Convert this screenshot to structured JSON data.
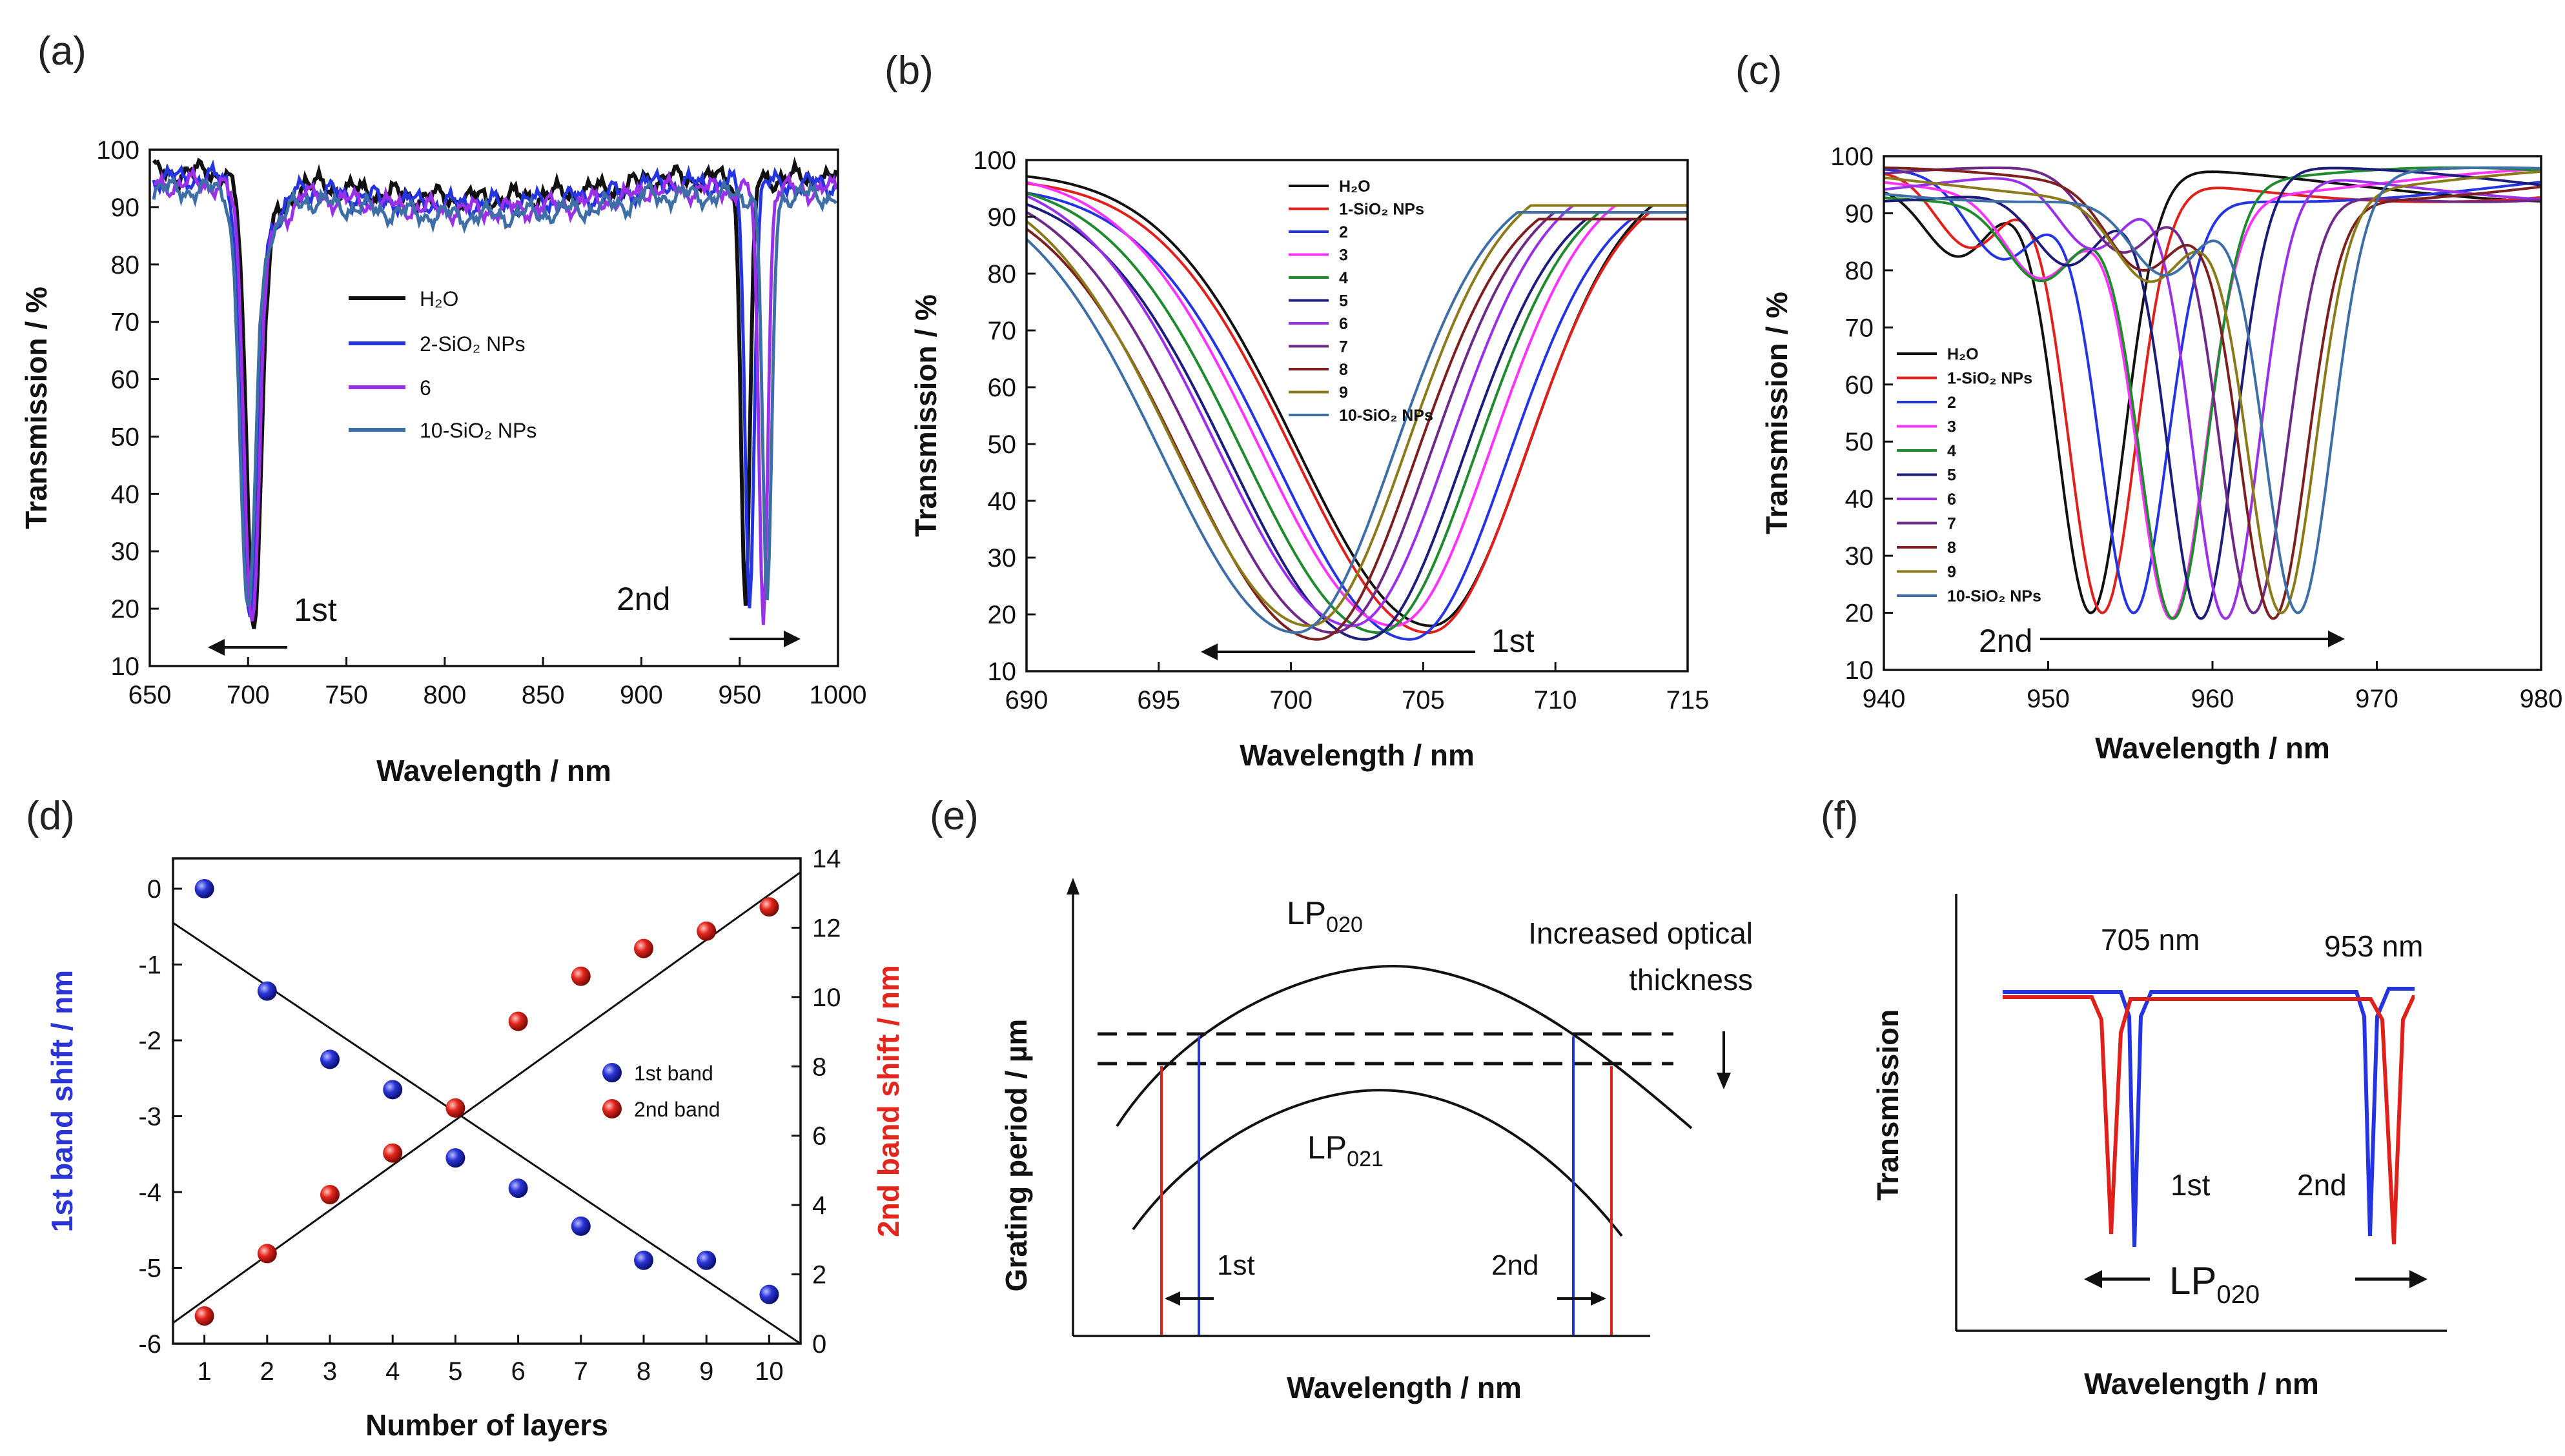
{
  "panel_labels": [
    "(a)",
    "(b)",
    "(c)",
    "(d)",
    "(e)",
    "(f)"
  ],
  "colors": {
    "black": "#111111",
    "red": "#e0201a",
    "blue": "#2434e0",
    "magenta": "#ff33ff",
    "green": "#1f8a2e",
    "navy": "#1c1c7a",
    "violet": "#9a30e8",
    "purple": "#6e2a86",
    "maroon": "#7b1f1f",
    "olive": "#8b7a1a",
    "steel": "#3d6fa6",
    "dot_blue": "#2b35d6",
    "dot_red": "#e3261d"
  },
  "chart_data": [
    {
      "id": "a",
      "type": "line",
      "title": "",
      "xlabel": "Wavelength / nm",
      "ylabel": "Transmission / %",
      "xlim": [
        650,
        1000
      ],
      "ylim": [
        10,
        100
      ],
      "xticks": [
        650,
        700,
        750,
        800,
        850,
        900,
        950,
        1000
      ],
      "yticks": [
        10,
        20,
        30,
        40,
        50,
        60,
        70,
        80,
        90,
        100
      ],
      "series": [
        {
          "name": "H₂O",
          "color": "#111111",
          "width": 6,
          "dip1": 703,
          "dip2": 953,
          "min1": 18,
          "min2": 21,
          "base": 97
        },
        {
          "name": "2-SiO₂ NPs",
          "color": "#2434e0",
          "width": 5,
          "dip1": 701,
          "dip2": 955,
          "min1": 18,
          "min2": 21,
          "base": 96
        },
        {
          "name": "6",
          "color": "#9a30e8",
          "width": 5,
          "dip1": 702,
          "dip2": 962,
          "min1": 18,
          "min2": 19,
          "base": 95
        },
        {
          "name": "10-SiO₂ NPs",
          "color": "#3d6fa6",
          "width": 5,
          "dip1": 700,
          "dip2": 964,
          "min1": 18,
          "min2": 20,
          "base": 94
        }
      ],
      "annotations": [
        {
          "text": "1st",
          "x": 723,
          "y": 20
        },
        {
          "text": "2nd",
          "x": 917,
          "y": 22
        }
      ]
    },
    {
      "id": "b",
      "type": "line",
      "title": "",
      "xlabel": "Wavelength / nm",
      "ylabel": "Transmission / %",
      "xlim": [
        690,
        715
      ],
      "ylim": [
        10,
        100
      ],
      "xticks": [
        690,
        695,
        700,
        705,
        710,
        715
      ],
      "yticks": [
        10,
        20,
        30,
        40,
        50,
        60,
        70,
        80,
        90,
        100
      ],
      "series": [
        {
          "name": "H₂O",
          "color": "#111111",
          "center": 705.3,
          "min": 18
        },
        {
          "name": "1-SiO₂ NPs",
          "color": "#e0201a",
          "center": 705.2,
          "min": 18
        },
        {
          "name": "2",
          "color": "#2434e0",
          "center": 704.5,
          "min": 18
        },
        {
          "name": "3",
          "color": "#ff33ff",
          "center": 703.9,
          "min": 18
        },
        {
          "name": "4",
          "color": "#1f8a2e",
          "center": 703.3,
          "min": 18
        },
        {
          "name": "5",
          "color": "#1c1c7a",
          "center": 702.8,
          "min": 18
        },
        {
          "name": "6",
          "color": "#9a30e8",
          "center": 702.3,
          "min": 18
        },
        {
          "name": "7",
          "color": "#6e2a86",
          "center": 701.6,
          "min": 18
        },
        {
          "name": "8",
          "color": "#7b1f1f",
          "center": 701.0,
          "min": 18
        },
        {
          "name": "9",
          "color": "#8b7a1a",
          "center": 700.7,
          "min": 18
        },
        {
          "name": "10-SiO₂ NPs",
          "color": "#3d6fa6",
          "center": 700.2,
          "min": 18
        }
      ],
      "annotations": [
        {
          "text": "1st",
          "x": 710.5,
          "y": 14
        }
      ]
    },
    {
      "id": "c",
      "type": "line",
      "title": "",
      "xlabel": "Wavelength / nm",
      "ylabel": "Transmission / %",
      "xlim": [
        940,
        980
      ],
      "ylim": [
        10,
        100
      ],
      "xticks": [
        940,
        950,
        960,
        970,
        980
      ],
      "yticks": [
        10,
        20,
        30,
        40,
        50,
        60,
        70,
        80,
        90,
        100
      ],
      "series": [
        {
          "name": "H₂O",
          "color": "#111111",
          "center": 952.6,
          "min": 20
        },
        {
          "name": "1-SiO₂ NPs",
          "color": "#e0201a",
          "center": 953.3,
          "min": 20
        },
        {
          "name": "2",
          "color": "#2434e0",
          "center": 955.2,
          "min": 20
        },
        {
          "name": "3",
          "color": "#ff33ff",
          "center": 957.5,
          "min": 19
        },
        {
          "name": "4",
          "color": "#1f8a2e",
          "center": 957.6,
          "min": 19
        },
        {
          "name": "5",
          "color": "#1c1c7a",
          "center": 959.3,
          "min": 19
        },
        {
          "name": "6",
          "color": "#9a30e8",
          "center": 960.8,
          "min": 19
        },
        {
          "name": "7",
          "color": "#6e2a86",
          "center": 962.5,
          "min": 20
        },
        {
          "name": "8",
          "color": "#7b1f1f",
          "center": 963.7,
          "min": 19
        },
        {
          "name": "9",
          "color": "#8b7a1a",
          "center": 964.2,
          "min": 20
        },
        {
          "name": "10-SiO₂ NPs",
          "color": "#3d6fa6",
          "center": 965.2,
          "min": 20
        }
      ],
      "annotations": [
        {
          "text": "2nd",
          "x": 948.8,
          "y": 15
        }
      ]
    },
    {
      "id": "d",
      "type": "scatter",
      "title": "",
      "xlabel": "Number of layers",
      "ylabel": "1st band shift / nm",
      "y2label": "2nd band shift / nm",
      "xlim": [
        0.5,
        10.5
      ],
      "ylim": [
        -6,
        0.4
      ],
      "y2lim": [
        0,
        14
      ],
      "xticks": [
        1,
        2,
        3,
        4,
        5,
        6,
        7,
        8,
        9,
        10
      ],
      "yticks": [
        0,
        -1,
        -2,
        -3,
        -4,
        -5,
        -6
      ],
      "y2ticks": [
        0,
        2,
        4,
        6,
        8,
        10,
        12,
        14
      ],
      "series": [
        {
          "name": "1st band",
          "axis": "left",
          "color": "#2b35d6",
          "x": [
            1,
            2,
            3,
            4,
            5,
            6,
            7,
            8,
            9,
            10
          ],
          "y": [
            0,
            -1.35,
            -2.25,
            -2.65,
            -3.55,
            -3.95,
            -4.45,
            -4.9,
            -4.9,
            -5.35
          ],
          "fit": [
            [
              0.5,
              -0.45
            ],
            [
              10.5,
              -6.0
            ]
          ]
        },
        {
          "name": "2nd band",
          "axis": "right",
          "color": "#e3261d",
          "x": [
            1,
            2,
            3,
            4,
            5,
            6,
            7,
            8,
            9,
            10
          ],
          "y": [
            0.8,
            2.6,
            4.3,
            5.5,
            6.8,
            9.3,
            10.6,
            11.4,
            11.9,
            12.6
          ],
          "fit": [
            [
              0.5,
              0.6
            ],
            [
              10.5,
              13.6
            ]
          ]
        }
      ]
    }
  ],
  "schematic_e": {
    "ylabel": "Grating period / µm",
    "xlabel": "Wavelength / nm",
    "mode_top": "LP",
    "mode_top_sub": "020",
    "mode_bottom": "LP",
    "mode_bottom_sub": "021",
    "note_line1": "Increased optical",
    "note_line2": "thickness",
    "first": "1st",
    "second": "2nd"
  },
  "schematic_f": {
    "ylabel": "Transmission",
    "xlabel": "Wavelength / nm",
    "peak1": "705 nm",
    "peak2": "953 nm",
    "first": "1st",
    "second": "2nd",
    "mode": "LP",
    "mode_sub": "020"
  }
}
